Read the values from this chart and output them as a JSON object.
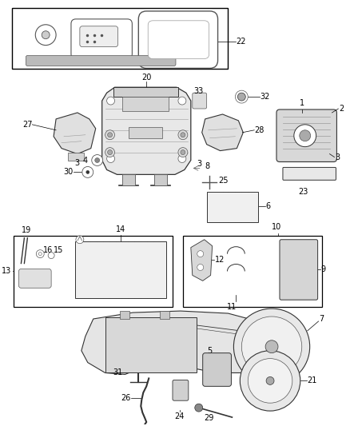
{
  "bg_color": "#ffffff",
  "fig_width": 4.38,
  "fig_height": 5.33,
  "dpi": 100,
  "gray": "#555555",
  "lgray": "#999999",
  "dgray": "#333333",
  "black": "#000000"
}
